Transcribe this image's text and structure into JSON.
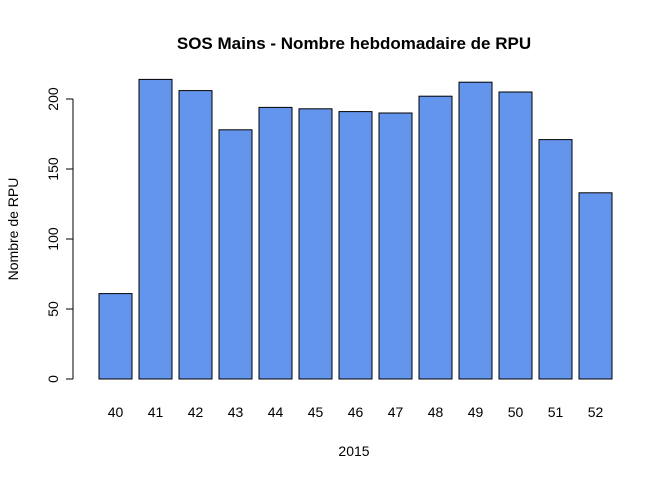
{
  "chart_data": {
    "type": "bar",
    "title": "SOS Mains - Nombre hebdomadaire de RPU",
    "xlabel": "2015",
    "ylabel": "Nombre de RPU",
    "categories": [
      "40",
      "41",
      "42",
      "43",
      "44",
      "45",
      "46",
      "47",
      "48",
      "49",
      "50",
      "51",
      "52"
    ],
    "values": [
      61,
      214,
      206,
      178,
      194,
      193,
      191,
      190,
      202,
      212,
      205,
      171,
      133
    ],
    "ylim": [
      0,
      200
    ],
    "yticks": [
      0,
      50,
      100,
      150,
      200
    ],
    "grid": false,
    "legend": "none",
    "bar_color": "#6495ED",
    "bar_border_color": "#000000"
  }
}
